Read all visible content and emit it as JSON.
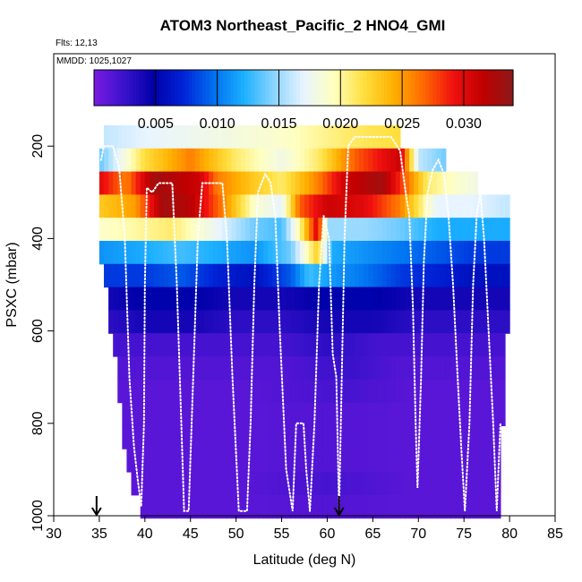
{
  "chart_data": {
    "type": "heatmap",
    "title": "ATOM3 Northeast_Pacific_2 HNO4_GMI",
    "notes": {
      "flights": "Flts: 12,13",
      "mmdd": "MMDD: 1025,1027"
    },
    "xlabel": "Latitude (deg N)",
    "ylabel": "PSXC (mbar)",
    "xlim": [
      30,
      85
    ],
    "ylim": [
      1000,
      0
    ],
    "x_ticks": [
      30,
      35,
      40,
      45,
      50,
      55,
      60,
      65,
      70,
      75,
      80,
      85
    ],
    "y_ticks": [
      200,
      400,
      600,
      800,
      1000
    ],
    "colorbar": {
      "range": [
        0.0,
        0.034
      ],
      "ticks": [
        "0.005",
        "0.010",
        "0.015",
        "0.020",
        "0.025",
        "0.030"
      ],
      "colors": [
        "#7a1ae0",
        "#3a12cc",
        "#0000a8",
        "#0024d8",
        "#0070f0",
        "#1cb0ff",
        "#8ad4ff",
        "#e8f4ff",
        "#ffffc0",
        "#ffe040",
        "#ffb000",
        "#ff6a00",
        "#f01010",
        "#c00000",
        "#8b1a1a"
      ]
    },
    "levels": [
      180,
      230,
      280,
      330,
      380,
      430,
      480,
      530,
      580,
      630,
      680,
      730,
      780,
      830,
      880,
      930,
      980
    ],
    "lat_start": 35,
    "lat_end": 80,
    "lat_step": 0.5,
    "level_profiles": [
      {
        "p": 180,
        "x0": 35.5,
        "x1": 68,
        "pts": [
          [
            35.5,
            0.016
          ],
          [
            40,
            0.017
          ],
          [
            48,
            0.018
          ],
          [
            55,
            0.019
          ],
          [
            62,
            0.021
          ],
          [
            68,
            0.022
          ]
        ]
      },
      {
        "p": 230,
        "x0": 35.2,
        "x1": 73,
        "pts": [
          [
            35.2,
            0.014
          ],
          [
            40,
            0.022
          ],
          [
            45,
            0.026
          ],
          [
            50,
            0.021
          ],
          [
            55,
            0.018
          ],
          [
            59,
            0.021
          ],
          [
            63,
            0.027
          ],
          [
            68,
            0.031
          ],
          [
            70,
            0.016
          ],
          [
            73,
            0.014
          ]
        ]
      },
      {
        "p": 280,
        "x0": 35,
        "x1": 76.5,
        "pts": [
          [
            35,
            0.03
          ],
          [
            38,
            0.026
          ],
          [
            41,
            0.033
          ],
          [
            46,
            0.031
          ],
          [
            48,
            0.026
          ],
          [
            52,
            0.023
          ],
          [
            55,
            0.021
          ],
          [
            59,
            0.026
          ],
          [
            62,
            0.031
          ],
          [
            66,
            0.033
          ],
          [
            69,
            0.026
          ],
          [
            71,
            0.021
          ],
          [
            74,
            0.019
          ],
          [
            76.5,
            0.018
          ]
        ]
      },
      {
        "p": 330,
        "x0": 35,
        "x1": 80,
        "pts": [
          [
            35,
            0.023
          ],
          [
            39,
            0.025
          ],
          [
            42,
            0.033
          ],
          [
            45,
            0.032
          ],
          [
            48,
            0.027
          ],
          [
            52,
            0.019
          ],
          [
            55,
            0.017
          ],
          [
            57,
            0.027
          ],
          [
            60,
            0.031
          ],
          [
            64,
            0.03
          ],
          [
            68,
            0.026
          ],
          [
            72,
            0.017
          ],
          [
            76,
            0.017
          ],
          [
            80,
            0.016
          ]
        ]
      },
      {
        "p": 380,
        "x0": 35,
        "x1": 80,
        "pts": [
          [
            35,
            0.019
          ],
          [
            39,
            0.02
          ],
          [
            43,
            0.021
          ],
          [
            47,
            0.018
          ],
          [
            52,
            0.014
          ],
          [
            55,
            0.013
          ],
          [
            57,
            0.02
          ],
          [
            59,
            0.031
          ],
          [
            60,
            0.015
          ],
          [
            64,
            0.015
          ],
          [
            68,
            0.014
          ],
          [
            72,
            0.012
          ],
          [
            76,
            0.012
          ],
          [
            80,
            0.012
          ]
        ]
      },
      {
        "p": 430,
        "x0": 35,
        "x1": 80,
        "pts": [
          [
            35,
            0.011
          ],
          [
            40,
            0.012
          ],
          [
            44,
            0.013
          ],
          [
            48,
            0.012
          ],
          [
            52,
            0.011
          ],
          [
            56,
            0.014
          ],
          [
            59,
            0.023
          ],
          [
            60.5,
            0.012
          ],
          [
            64,
            0.011
          ],
          [
            68,
            0.01
          ],
          [
            72,
            0.009
          ],
          [
            76,
            0.008
          ],
          [
            80,
            0.008
          ]
        ]
      },
      {
        "p": 480,
        "x0": 35.5,
        "x1": 80,
        "pts": [
          [
            35.5,
            0.008
          ],
          [
            40,
            0.008
          ],
          [
            44,
            0.009
          ],
          [
            48,
            0.007
          ],
          [
            52,
            0.006
          ],
          [
            56,
            0.009
          ],
          [
            58,
            0.013
          ],
          [
            61,
            0.011
          ],
          [
            64,
            0.01
          ],
          [
            68,
            0.008
          ],
          [
            72,
            0.007
          ],
          [
            76,
            0.006
          ],
          [
            80,
            0.006
          ]
        ]
      },
      {
        "p": 530,
        "x0": 36,
        "x1": 80,
        "pts": [
          [
            36,
            0.004
          ],
          [
            40,
            0.005
          ],
          [
            45,
            0.005
          ],
          [
            50,
            0.004
          ],
          [
            55,
            0.004
          ],
          [
            60,
            0.005
          ],
          [
            65,
            0.005
          ],
          [
            70,
            0.004
          ],
          [
            75,
            0.004
          ],
          [
            80,
            0.004
          ]
        ]
      },
      {
        "p": 580,
        "x0": 36,
        "x1": 80,
        "pts": [
          [
            36,
            0.003
          ],
          [
            40,
            0.004
          ],
          [
            45,
            0.004
          ],
          [
            50,
            0.003
          ],
          [
            55,
            0.003
          ],
          [
            60,
            0.004
          ],
          [
            65,
            0.004
          ],
          [
            70,
            0.003
          ],
          [
            75,
            0.003
          ],
          [
            80,
            0.003
          ]
        ]
      },
      {
        "p": 630,
        "x0": 36.5,
        "x1": 79.5,
        "pts": [
          [
            36.5,
            0.002
          ],
          [
            42,
            0.002
          ],
          [
            48,
            0.002
          ],
          [
            55,
            0.002
          ],
          [
            60,
            0.003
          ],
          [
            66,
            0.002
          ],
          [
            72,
            0.002
          ],
          [
            79.5,
            0.002
          ]
        ]
      },
      {
        "p": 680,
        "x0": 37,
        "x1": 79.5,
        "pts": [
          [
            37,
            0.0015
          ],
          [
            45,
            0.0015
          ],
          [
            55,
            0.0015
          ],
          [
            62,
            0.0025
          ],
          [
            68,
            0.0015
          ],
          [
            79.5,
            0.0015
          ]
        ]
      },
      {
        "p": 730,
        "x0": 37,
        "x1": 79.5,
        "pts": [
          [
            37,
            0.0012
          ],
          [
            50,
            0.0012
          ],
          [
            62,
            0.002
          ],
          [
            70,
            0.0012
          ],
          [
            79.5,
            0.0012
          ]
        ]
      },
      {
        "p": 780,
        "x0": 37.5,
        "x1": 79.5,
        "pts": [
          [
            37.5,
            0.0012
          ],
          [
            50,
            0.0012
          ],
          [
            60,
            0.0015
          ],
          [
            70,
            0.0012
          ],
          [
            79.5,
            0.0012
          ]
        ]
      },
      {
        "p": 830,
        "x0": 37.5,
        "x1": 79,
        "pts": [
          [
            37.5,
            0.0012
          ],
          [
            50,
            0.0012
          ],
          [
            60,
            0.0015
          ],
          [
            70,
            0.0012
          ],
          [
            79,
            0.0012
          ]
        ]
      },
      {
        "p": 880,
        "x0": 38,
        "x1": 79,
        "pts": [
          [
            38,
            0.0012
          ],
          [
            50,
            0.0012
          ],
          [
            60,
            0.0015
          ],
          [
            70,
            0.0012
          ],
          [
            79,
            0.0012
          ]
        ]
      },
      {
        "p": 930,
        "x0": 38.5,
        "x1": 79,
        "pts": [
          [
            38.5,
            0.0012
          ],
          [
            50,
            0.0012
          ],
          [
            60,
            0.002
          ],
          [
            70,
            0.0012
          ],
          [
            79,
            0.0012
          ]
        ]
      },
      {
        "p": 980,
        "x0": 39.5,
        "x1": 79,
        "pts": [
          [
            39.5,
            0.0012
          ],
          [
            50,
            0.0012
          ],
          [
            60,
            0.0015
          ],
          [
            70,
            0.0012
          ],
          [
            79,
            0.0012
          ]
        ]
      }
    ],
    "flight_track": [
      [
        35.2,
        230
      ],
      [
        35.5,
        200
      ],
      [
        36.5,
        200
      ],
      [
        37.2,
        250
      ],
      [
        37.8,
        400
      ],
      [
        38.3,
        700
      ],
      [
        38.8,
        850
      ],
      [
        39.2,
        920
      ],
      [
        39.6,
        980
      ],
      [
        39.9,
        800
      ],
      [
        40.0,
        500
      ],
      [
        40.2,
        290
      ],
      [
        40.8,
        300
      ],
      [
        41.5,
        280
      ],
      [
        43.0,
        280
      ],
      [
        43.5,
        500
      ],
      [
        44.0,
        800
      ],
      [
        44.3,
        990
      ],
      [
        44.8,
        990
      ],
      [
        45.3,
        700
      ],
      [
        45.8,
        400
      ],
      [
        46.3,
        280
      ],
      [
        47.5,
        280
      ],
      [
        48.5,
        280
      ],
      [
        49.0,
        400
      ],
      [
        49.6,
        700
      ],
      [
        50.3,
        990
      ],
      [
        51.2,
        990
      ],
      [
        51.6,
        800
      ],
      [
        52.0,
        500
      ],
      [
        52.4,
        300
      ],
      [
        53.2,
        260
      ],
      [
        53.8,
        280
      ],
      [
        54.3,
        350
      ],
      [
        54.8,
        600
      ],
      [
        55.5,
        900
      ],
      [
        56.2,
        990
      ],
      [
        56.6,
        800
      ],
      [
        57.4,
        800
      ],
      [
        57.7,
        900
      ],
      [
        58.1,
        990
      ],
      [
        58.6,
        800
      ],
      [
        59.1,
        500
      ],
      [
        59.6,
        350
      ],
      [
        60.2,
        400
      ],
      [
        60.6,
        650
      ],
      [
        61.0,
        700
      ],
      [
        61.3,
        990
      ],
      [
        61.6,
        700
      ],
      [
        61.9,
        400
      ],
      [
        62.3,
        200
      ],
      [
        63.0,
        180
      ],
      [
        66.0,
        180
      ],
      [
        67.0,
        180
      ],
      [
        68.0,
        210
      ],
      [
        68.6,
        300
      ],
      [
        69.0,
        350
      ],
      [
        69.4,
        550
      ],
      [
        69.7,
        800
      ],
      [
        69.9,
        940
      ],
      [
        70.3,
        700
      ],
      [
        70.6,
        450
      ],
      [
        71.0,
        300
      ],
      [
        71.6,
        250
      ],
      [
        72.2,
        230
      ],
      [
        72.8,
        260
      ],
      [
        73.3,
        350
      ],
      [
        73.8,
        500
      ],
      [
        74.3,
        700
      ],
      [
        74.7,
        850
      ],
      [
        75.1,
        990
      ],
      [
        75.6,
        800
      ],
      [
        76.0,
        500
      ],
      [
        76.4,
        350
      ],
      [
        76.8,
        300
      ],
      [
        77.2,
        400
      ],
      [
        77.7,
        600
      ],
      [
        78.2,
        800
      ],
      [
        78.6,
        990
      ],
      [
        79.0,
        800
      ]
    ],
    "markers": [
      {
        "lat": 34.7,
        "p": 1000
      },
      {
        "lat": 61.3,
        "p": 1000
      }
    ]
  }
}
